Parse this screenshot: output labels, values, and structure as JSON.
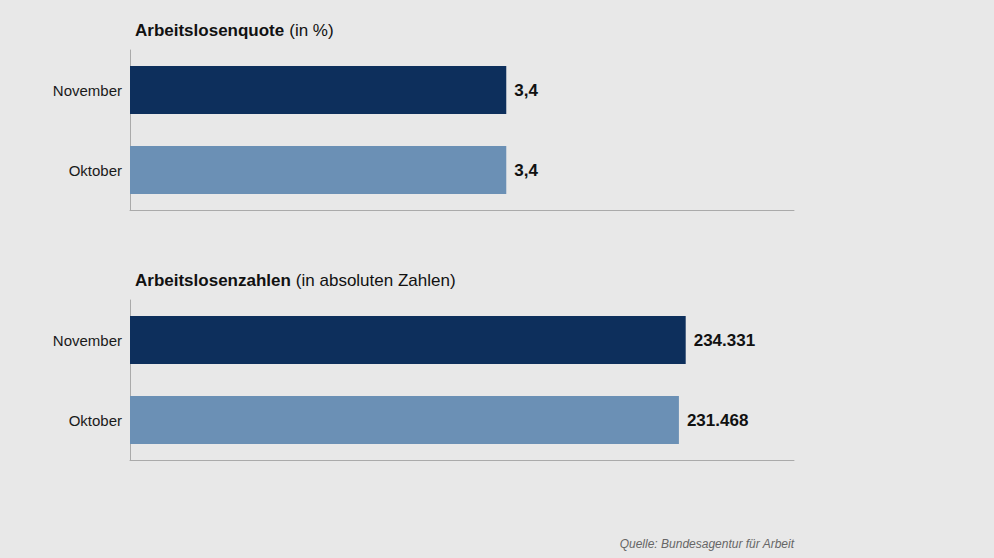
{
  "chart_data": [
    {
      "type": "bar",
      "orientation": "horizontal",
      "title": "Arbeitslosenquote",
      "subtitle": "(in %)",
      "categories": [
        "Oktober",
        "November"
      ],
      "values": [
        3.4,
        3.4
      ],
      "value_labels": [
        "3,4",
        "3,4"
      ],
      "colors": [
        "#6b90b5",
        "#0d2f5c"
      ],
      "xlim": [
        0,
        6.0
      ],
      "grid": false,
      "tick_labels": "y",
      "data_labels": true
    },
    {
      "type": "bar",
      "orientation": "horizontal",
      "title": "Arbeitslosenzahlen",
      "subtitle": "(in absoluten Zahlen)",
      "categories": [
        "Oktober",
        "November"
      ],
      "values": [
        231468,
        234331
      ],
      "value_labels": [
        "231.468",
        "234.331"
      ],
      "colors": [
        "#6b90b5",
        "#0d2f5c"
      ],
      "xlim": [
        0,
        280000
      ],
      "grid": false,
      "tick_labels": "y",
      "data_labels": true,
      "annotations": [
        "Quelle: Bundesagentur für Arbeit"
      ]
    }
  ]
}
